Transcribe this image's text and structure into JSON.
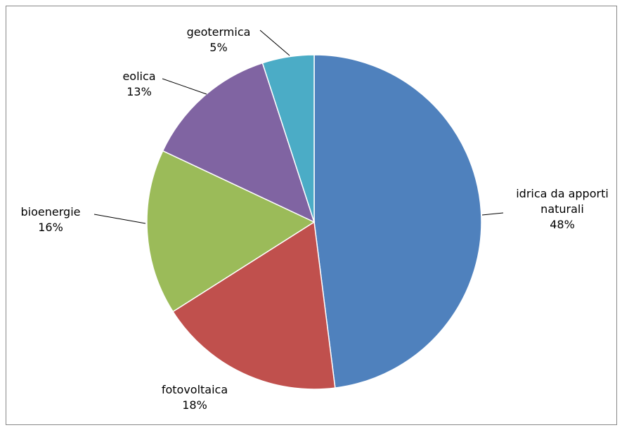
{
  "chart_data": {
    "type": "pie",
    "categories": [
      "idrica da apporti naturali",
      "fotovoltaica",
      "bioenergie",
      "eolica",
      "geotermica"
    ],
    "values": [
      48,
      18,
      16,
      13,
      5
    ],
    "value_labels": [
      "48%",
      "18%",
      "16%",
      "13%",
      "5%"
    ],
    "colors": [
      "#4f81bd",
      "#c0504d",
      "#9bbb59",
      "#8064a2",
      "#4bacc6"
    ]
  }
}
